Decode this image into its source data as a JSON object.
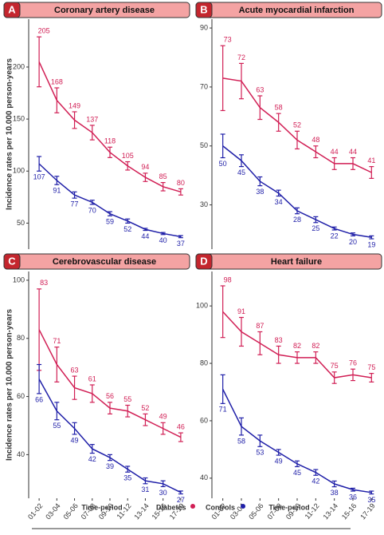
{
  "chart_data": [
    {
      "type": "line",
      "label": "A",
      "title": "Coronary artery disease",
      "ylabel": "Incidence rates per 10.000 person-years",
      "ylim": [
        25,
        246
      ],
      "yticks": [
        50,
        100,
        150,
        200
      ],
      "series": [
        {
          "color": "#d11f55",
          "values": [
            205,
            168,
            149,
            137,
            118,
            105,
            94,
            85,
            80
          ],
          "errors": [
            24,
            12,
            8,
            7,
            5,
            4,
            4,
            4,
            3
          ]
        },
        {
          "color": "#1f1fa8",
          "values": [
            107,
            91,
            77,
            70,
            59,
            52,
            44,
            40,
            37
          ],
          "errors": [
            7,
            4,
            3,
            2,
            2,
            2,
            1,
            1,
            1
          ]
        }
      ]
    },
    {
      "type": "line",
      "label": "B",
      "title": "Acute myocardial infarction",
      "ylim": [
        15,
        93
      ],
      "yticks": [
        30,
        50,
        70,
        90
      ],
      "series": [
        {
          "color": "#d11f55",
          "values": [
            73,
            72,
            63,
            58,
            52,
            48,
            44,
            44,
            41
          ],
          "errors": [
            11,
            6,
            4,
            3,
            3,
            2,
            2,
            2,
            2
          ]
        },
        {
          "color": "#1f1fa8",
          "values": [
            50,
            45,
            38,
            34,
            28,
            25,
            22,
            20,
            19
          ],
          "errors": [
            4,
            2,
            1.5,
            1,
            1,
            1,
            0.5,
            0.5,
            0.5
          ]
        }
      ]
    },
    {
      "type": "line",
      "label": "C",
      "title": "Cerebrovascular disease",
      "ylabel": "Incidence rates per 10.000 person-years",
      "xlabel": "Time-period",
      "categories": [
        "01-02",
        "03-04",
        "05-06",
        "07-08",
        "09-10",
        "11-12",
        "13-14",
        "15-16",
        "17-19"
      ],
      "ylim": [
        25,
        103
      ],
      "yticks": [
        40,
        60,
        80,
        100
      ],
      "series": [
        {
          "color": "#d11f55",
          "values": [
            83,
            71,
            63,
            61,
            56,
            55,
            52,
            49,
            46
          ],
          "errors": [
            14,
            6,
            4,
            3,
            2,
            2,
            2,
            2,
            1.5
          ]
        },
        {
          "color": "#1f1fa8",
          "values": [
            66,
            55,
            49,
            42,
            39,
            35,
            31,
            30,
            27
          ],
          "errors": [
            5,
            3,
            2,
            1.5,
            1,
            1,
            1,
            1,
            0.5
          ]
        }
      ]
    },
    {
      "type": "line",
      "label": "D",
      "title": "Heart failure",
      "xlabel": "Time-period",
      "categories": [
        "01-02",
        "03-04",
        "05-06",
        "07-08",
        "09-10",
        "11-12",
        "13-14",
        "15-16",
        "17-19"
      ],
      "ylim": [
        33,
        112
      ],
      "yticks": [
        40,
        60,
        80,
        100
      ],
      "series": [
        {
          "color": "#d11f55",
          "values": [
            98,
            91,
            87,
            83,
            82,
            82,
            75,
            76,
            75
          ],
          "errors": [
            9,
            5,
            4,
            3,
            2,
            2,
            2,
            2,
            1.5
          ]
        },
        {
          "color": "#1f1fa8",
          "values": [
            71,
            58,
            53,
            49,
            45,
            42,
            38,
            36,
            35
          ],
          "errors": [
            5,
            3,
            2,
            1,
            1,
            1,
            1,
            0.5,
            0.5
          ]
        }
      ]
    }
  ],
  "legend": [
    {
      "name": "Diabetes",
      "color": "#d11f55"
    },
    {
      "name": "Controls",
      "color": "#1f1fa8"
    }
  ]
}
